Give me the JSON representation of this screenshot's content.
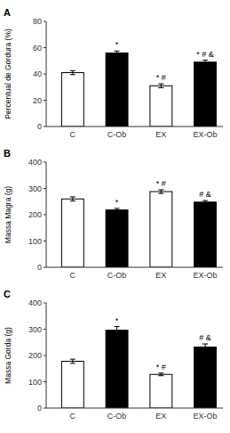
{
  "chart_data": [
    {
      "type": "bar",
      "title": "A",
      "ylabel": "Percentual de Gordura (%)",
      "categories": [
        "C",
        "C-Ob",
        "EX",
        "EX-Ob"
      ],
      "values": [
        41,
        56,
        31,
        49
      ],
      "errors": [
        1.5,
        1.5,
        1.5,
        1.5
      ],
      "colors": [
        "white",
        "black",
        "white",
        "black"
      ],
      "annotations": [
        null,
        "*",
        "* #",
        "* # &"
      ],
      "ylim": [
        0,
        80
      ],
      "yticks": [
        0,
        20,
        40,
        60,
        80
      ]
    },
    {
      "type": "bar",
      "title": "B",
      "ylabel": "Massa Magra (g)",
      "categories": [
        "C",
        "C-Ob",
        "EX",
        "EX-Ob"
      ],
      "values": [
        260,
        218,
        288,
        248
      ],
      "errors": [
        8,
        6,
        7,
        6
      ],
      "colors": [
        "white",
        "black",
        "white",
        "black"
      ],
      "annotations": [
        null,
        "*",
        "* #",
        "# &"
      ],
      "ylim": [
        0,
        400
      ],
      "yticks": [
        0,
        100,
        200,
        300,
        400
      ]
    },
    {
      "type": "bar",
      "title": "C",
      "ylabel": "Massa Gorda (g)",
      "categories": [
        "C",
        "C-Ob",
        "EX",
        "EX-Ob"
      ],
      "values": [
        178,
        296,
        128,
        232
      ],
      "errors": [
        8,
        14,
        5,
        12
      ],
      "colors": [
        "white",
        "black",
        "white",
        "black"
      ],
      "annotations": [
        null,
        "*",
        "* #",
        "# &"
      ],
      "ylim": [
        0,
        400
      ],
      "yticks": [
        0,
        100,
        200,
        300,
        400
      ]
    }
  ]
}
